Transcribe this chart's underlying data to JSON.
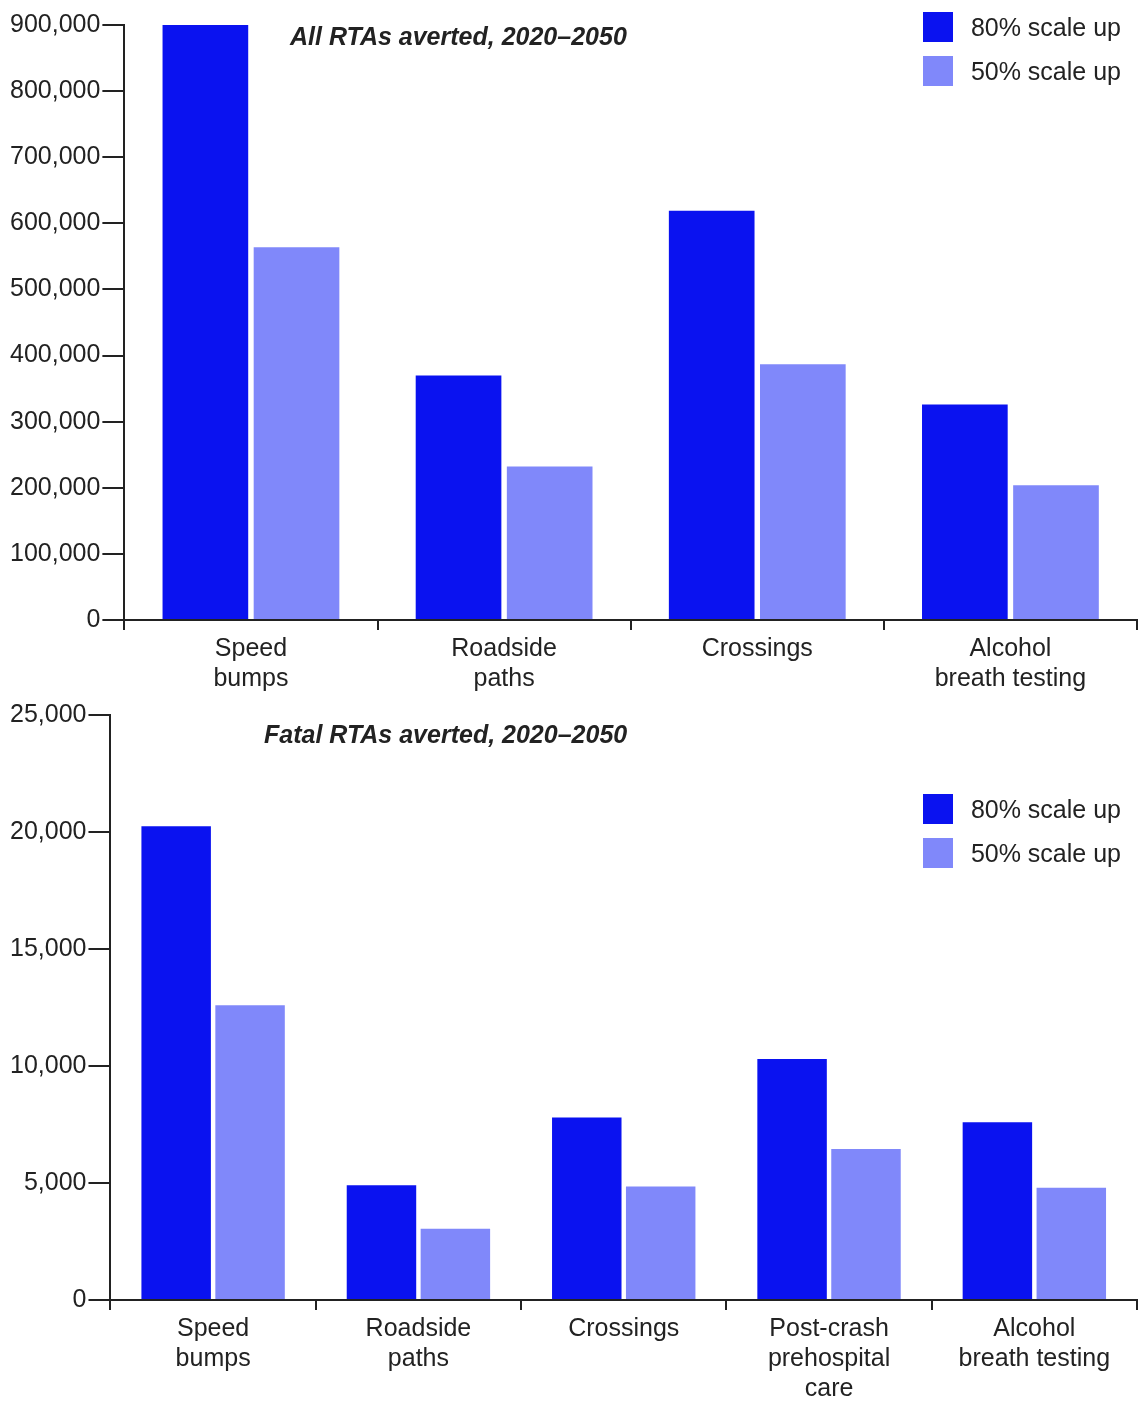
{
  "chart_data": [
    {
      "type": "bar",
      "title": "All RTAs averted, 2020–2050",
      "categories": [
        "Speed bumps",
        "Roadside paths",
        "Crossings",
        "Alcohol breath testing"
      ],
      "series": [
        {
          "name": "80% scale up",
          "color": "#0a12f0",
          "values": [
            900000,
            370000,
            619000,
            326000
          ]
        },
        {
          "name": "50% scale up",
          "color": "#8088fa",
          "values": [
            564000,
            232000,
            387000,
            204000
          ]
        }
      ],
      "ylim": [
        0,
        900000
      ],
      "yticks": [
        0,
        {
          "value": 100000,
          "label": "100,000"
        },
        {
          "value": 200000,
          "label": "200,000"
        },
        {
          "value": 300000,
          "label": "300,000"
        },
        {
          "value": 400000,
          "label": "400,000"
        },
        {
          "value": 500000,
          "label": "500,000"
        },
        {
          "value": 600000,
          "label": "600,000"
        },
        {
          "value": 700000,
          "label": "700,000"
        },
        {
          "value": 800000,
          "label": "800,000"
        },
        {
          "value": 900000,
          "label": "900,000"
        }
      ],
      "legend": "top right"
    },
    {
      "type": "bar",
      "title": "Fatal RTAs averted, 2020–2050",
      "categories": [
        "Speed bumps",
        "Roadside paths",
        "Crossings",
        "Post-crash prehospital care",
        "Alcohol breath testing"
      ],
      "series": [
        {
          "name": "80% scale up",
          "color": "#0a12f0",
          "values": [
            20250,
            4900,
            7800,
            10300,
            7600
          ]
        },
        {
          "name": "50% scale up",
          "color": "#8088fa",
          "values": [
            12600,
            3050,
            4850,
            6450,
            4800
          ]
        }
      ],
      "ylim": [
        0,
        25000
      ],
      "yticks": [
        0,
        {
          "value": 5000,
          "label": "5,000"
        },
        {
          "value": 10000,
          "label": "10,000"
        },
        {
          "value": 15000,
          "label": "15,000"
        },
        {
          "value": 20000,
          "label": "20,000"
        },
        {
          "value": 25000,
          "label": "25,000"
        }
      ],
      "legend": "top right"
    }
  ]
}
